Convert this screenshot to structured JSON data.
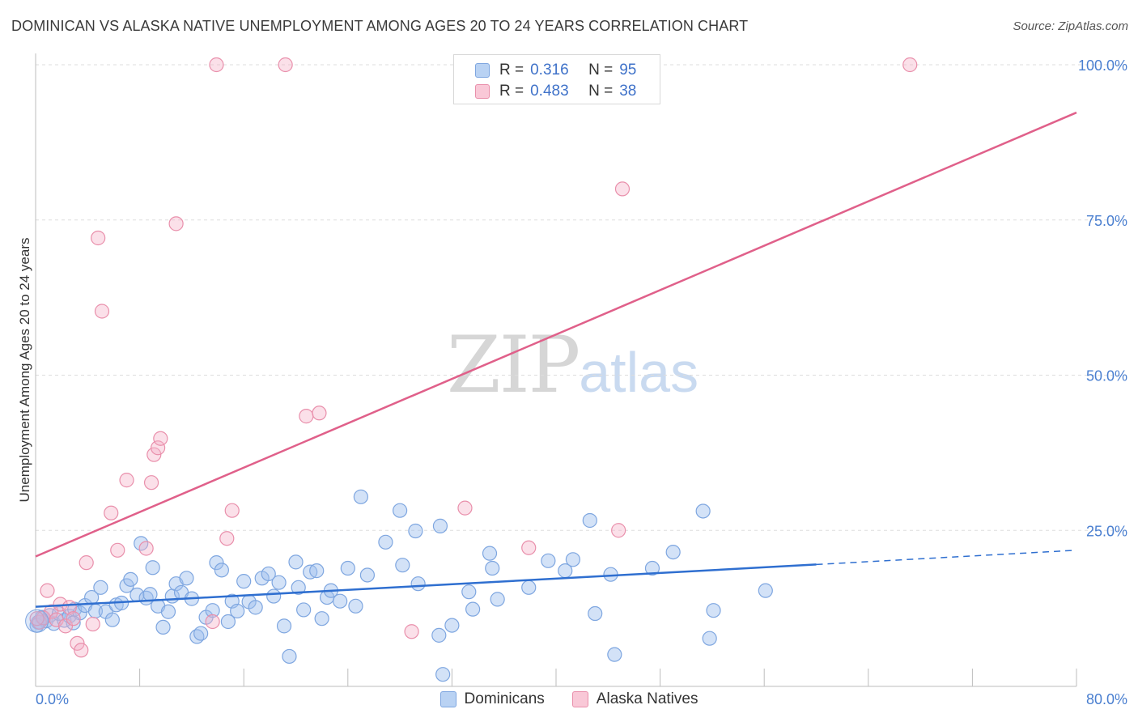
{
  "title": "DOMINICAN VS ALASKA NATIVE UNEMPLOYMENT AMONG AGES 20 TO 24 YEARS CORRELATION CHART",
  "source": "Source: ZipAtlas.com",
  "watermark": {
    "zip": "ZIP",
    "atlas": "atlas"
  },
  "legend": {
    "r_label": "R =",
    "n_label": "N =",
    "items": [
      {
        "name": "Dominicans",
        "r": "0.316",
        "n": "95",
        "color": "#7ea6e0"
      },
      {
        "name": "Alaska Natives",
        "r": "0.483",
        "n": "38",
        "color": "#e98fab"
      }
    ]
  },
  "chart_data": {
    "type": "scatter",
    "title": "DOMINICAN VS ALASKA NATIVE UNEMPLOYMENT AMONG AGES 20 TO 24 YEARS CORRELATION CHART",
    "xlabel": "",
    "ylabel": "Unemployment Among Ages 20 to 24 years",
    "xlim": [
      0,
      80
    ],
    "ylim": [
      0,
      105
    ],
    "x_tick_labels": [
      "0.0%",
      "80.0%"
    ],
    "y_ticks": [
      25,
      50,
      75,
      100
    ],
    "y_tick_labels": [
      "25.0%",
      "50.0%",
      "75.0%",
      "100.0%"
    ],
    "grid": true,
    "series": [
      {
        "name": "Dominicans",
        "color": "#7ea6e0",
        "trend": {
          "x0": 0,
          "y0": 12.7,
          "x1": 60,
          "y1": 19.5,
          "dash_to_x": 80,
          "dash_to_y": 21.8,
          "color": "#2f6fd0"
        },
        "points": [
          [
            0.2,
            10.2
          ],
          [
            0.5,
            11.0
          ],
          [
            0.8,
            10.4
          ],
          [
            1.1,
            11.3
          ],
          [
            1.4,
            10.0
          ],
          [
            1.8,
            11.6
          ],
          [
            2.2,
            10.5
          ],
          [
            2.6,
            11.2
          ],
          [
            3.0,
            12.3
          ],
          [
            3.4,
            11.7
          ],
          [
            3.8,
            12.9
          ],
          [
            4.3,
            14.2
          ],
          [
            4.6,
            12.0
          ],
          [
            5.0,
            15.8
          ],
          [
            5.4,
            11.9
          ],
          [
            5.9,
            10.6
          ],
          [
            6.2,
            13.0
          ],
          [
            6.6,
            13.3
          ],
          [
            7.0,
            16.1
          ],
          [
            7.3,
            17.1
          ],
          [
            7.8,
            14.6
          ],
          [
            8.1,
            22.9
          ],
          [
            8.5,
            14.1
          ],
          [
            8.8,
            14.7
          ],
          [
            9.0,
            19.0
          ],
          [
            9.4,
            12.8
          ],
          [
            9.8,
            9.4
          ],
          [
            10.2,
            11.9
          ],
          [
            10.5,
            14.4
          ],
          [
            10.8,
            16.4
          ],
          [
            11.2,
            15.0
          ],
          [
            11.6,
            17.3
          ],
          [
            12.0,
            14.0
          ],
          [
            12.4,
            7.9
          ],
          [
            12.7,
            8.4
          ],
          [
            13.1,
            11.0
          ],
          [
            13.6,
            12.1
          ],
          [
            13.9,
            19.8
          ],
          [
            14.3,
            18.6
          ],
          [
            14.8,
            10.3
          ],
          [
            15.1,
            13.6
          ],
          [
            15.5,
            12.0
          ],
          [
            16.0,
            16.8
          ],
          [
            16.4,
            13.5
          ],
          [
            16.9,
            12.6
          ],
          [
            17.4,
            17.3
          ],
          [
            17.9,
            18.0
          ],
          [
            18.3,
            14.4
          ],
          [
            18.7,
            16.6
          ],
          [
            19.1,
            9.6
          ],
          [
            19.5,
            4.7
          ],
          [
            20.0,
            19.9
          ],
          [
            20.2,
            15.8
          ],
          [
            20.6,
            12.2
          ],
          [
            21.1,
            18.3
          ],
          [
            21.6,
            18.5
          ],
          [
            22.0,
            10.8
          ],
          [
            22.4,
            14.2
          ],
          [
            22.7,
            15.3
          ],
          [
            23.4,
            13.6
          ],
          [
            24.0,
            18.9
          ],
          [
            24.6,
            12.8
          ],
          [
            25.0,
            30.4
          ],
          [
            25.5,
            17.8
          ],
          [
            26.9,
            23.1
          ],
          [
            28.0,
            28.2
          ],
          [
            28.2,
            19.4
          ],
          [
            29.2,
            24.9
          ],
          [
            29.4,
            16.4
          ],
          [
            31.1,
            25.7
          ],
          [
            32.0,
            9.7
          ],
          [
            31.3,
            1.8
          ],
          [
            31.0,
            8.1
          ],
          [
            33.3,
            15.1
          ],
          [
            33.6,
            12.3
          ],
          [
            34.9,
            21.3
          ],
          [
            35.1,
            18.9
          ],
          [
            35.5,
            13.9
          ],
          [
            37.9,
            15.8
          ],
          [
            39.4,
            20.1
          ],
          [
            40.7,
            18.5
          ],
          [
            41.3,
            20.3
          ],
          [
            42.6,
            26.6
          ],
          [
            43.0,
            11.6
          ],
          [
            44.2,
            17.9
          ],
          [
            44.5,
            5.0
          ],
          [
            47.4,
            18.9
          ],
          [
            49.0,
            21.5
          ],
          [
            51.3,
            28.1
          ],
          [
            51.8,
            7.6
          ],
          [
            52.1,
            12.1
          ],
          [
            56.1,
            15.3
          ],
          [
            0.1,
            9.7
          ],
          [
            0.6,
            10.9
          ],
          [
            2.9,
            10.1
          ]
        ]
      },
      {
        "name": "Alaska Natives",
        "color": "#e98fab",
        "trend": {
          "x0": 0,
          "y0": 20.8,
          "x1": 80,
          "y1": 92.3,
          "color": "#e0608a"
        },
        "points": [
          [
            0.3,
            10.2
          ],
          [
            0.6,
            10.9
          ],
          [
            0.9,
            15.3
          ],
          [
            1.2,
            11.9
          ],
          [
            1.6,
            10.6
          ],
          [
            1.9,
            13.1
          ],
          [
            2.3,
            9.6
          ],
          [
            2.6,
            12.6
          ],
          [
            2.9,
            10.8
          ],
          [
            3.2,
            6.8
          ],
          [
            3.5,
            5.7
          ],
          [
            3.9,
            19.8
          ],
          [
            4.4,
            9.9
          ],
          [
            4.8,
            72.1
          ],
          [
            5.1,
            60.3
          ],
          [
            5.8,
            27.8
          ],
          [
            6.3,
            21.8
          ],
          [
            7.0,
            33.1
          ],
          [
            8.5,
            22.1
          ],
          [
            8.9,
            32.7
          ],
          [
            9.1,
            37.2
          ],
          [
            9.4,
            38.3
          ],
          [
            9.6,
            39.8
          ],
          [
            10.8,
            74.4
          ],
          [
            13.6,
            10.3
          ],
          [
            14.7,
            23.7
          ],
          [
            15.1,
            28.2
          ],
          [
            13.9,
            100.0
          ],
          [
            19.2,
            100.0
          ],
          [
            20.8,
            43.4
          ],
          [
            21.8,
            43.9
          ],
          [
            28.9,
            8.7
          ],
          [
            33.0,
            28.6
          ],
          [
            37.9,
            22.2
          ],
          [
            44.8,
            25.0
          ],
          [
            45.1,
            80.0
          ],
          [
            67.2,
            100.0
          ],
          [
            0.1,
            10.8
          ]
        ]
      }
    ]
  }
}
